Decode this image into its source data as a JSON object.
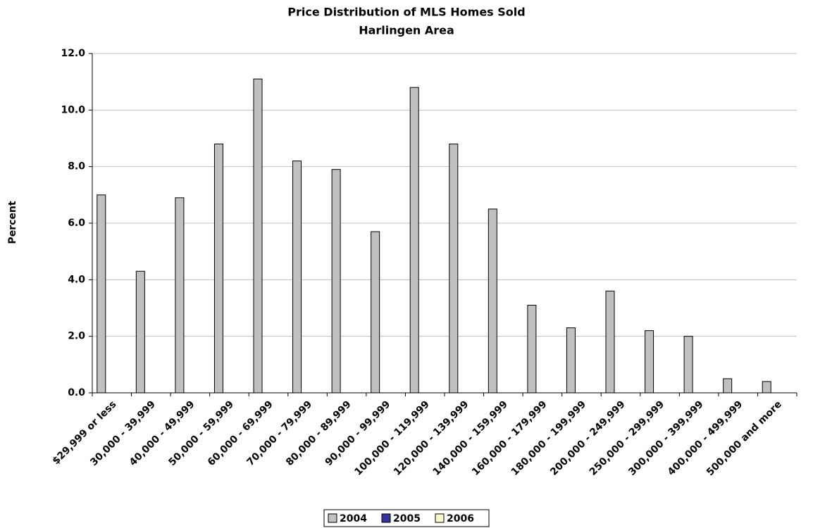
{
  "chart_data": {
    "type": "bar",
    "title": "Price Distribution of MLS Homes Sold",
    "subtitle": "Harlingen Area",
    "y_label": "Percent",
    "categories": [
      "$29,999 or less",
      "30,000 - 39,999",
      "40,000 - 49,999",
      "50,000 - 59,999",
      "60,000 - 69,999",
      "70,000 - 79,999",
      "80,000 - 89,999",
      "90,000 - 99,999",
      "100,000 - 119,999",
      "120,000 - 139,999",
      "140,000 - 159,999",
      "160,000 - 179,999",
      "180,000 - 199,999",
      "200,000 - 249,999",
      "250,000 - 299,999",
      "300,000 - 399,999",
      "400,000 - 499,999",
      "500,000 and more"
    ],
    "series": [
      {
        "name": "2004",
        "color": "#c0c0c0",
        "values": [
          7.0,
          4.3,
          6.9,
          8.8,
          11.1,
          8.2,
          7.9,
          5.7,
          10.8,
          8.8,
          6.5,
          3.1,
          2.3,
          3.6,
          2.2,
          2.0,
          0.5,
          0.4
        ]
      },
      {
        "name": "2005",
        "color": "#333399",
        "values": [
          null,
          null,
          null,
          null,
          null,
          null,
          null,
          null,
          null,
          null,
          null,
          null,
          null,
          null,
          null,
          null,
          null,
          null
        ]
      },
      {
        "name": "2006",
        "color": "#ffffcc",
        "values": [
          null,
          null,
          null,
          null,
          null,
          null,
          null,
          null,
          null,
          null,
          null,
          null,
          null,
          null,
          null,
          null,
          null,
          null
        ]
      }
    ],
    "ylim": [
      0,
      12
    ],
    "yticks": [
      {
        "value": 0,
        "label": "0.0"
      },
      {
        "value": 2,
        "label": "2.0"
      },
      {
        "value": 4,
        "label": "4.0"
      },
      {
        "value": 6,
        "label": "6.0"
      },
      {
        "value": 8,
        "label": "8.0"
      },
      {
        "value": 10,
        "label": "10.0"
      },
      {
        "value": 12,
        "label": "12.0"
      }
    ],
    "grid": true,
    "legend": "bottom"
  }
}
